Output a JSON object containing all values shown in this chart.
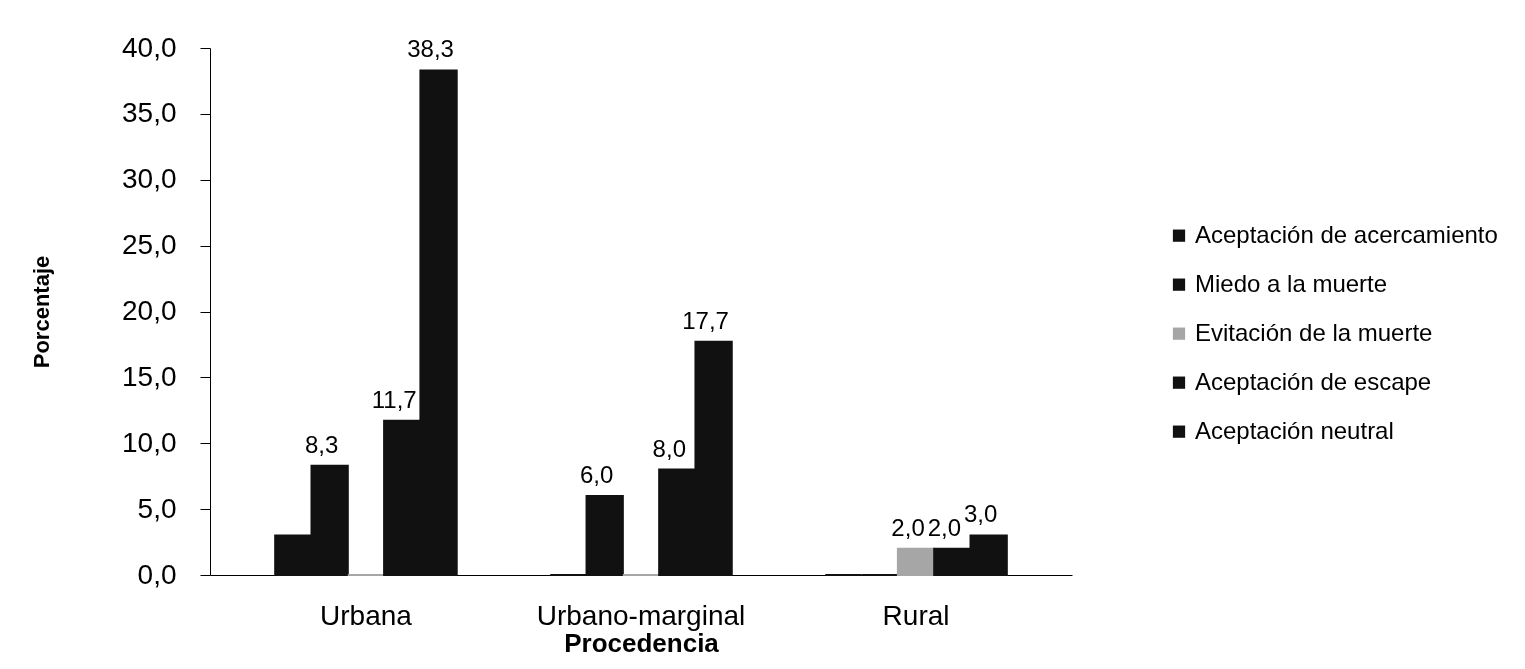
{
  "chart_data": {
    "type": "bar",
    "xlabel": "Procedencia",
    "ylabel": "Porcentaje",
    "categories": [
      "Urbana",
      "Urbano-marginal",
      "Rural"
    ],
    "series": [
      {
        "name": "Aceptación de acercamiento",
        "color": "#111111",
        "values": [
          3.0,
          0,
          0
        ]
      },
      {
        "name": "Miedo a la muerte",
        "color": "#111111",
        "values": [
          8.3,
          6.0,
          0
        ],
        "value_labels": [
          "8,3",
          "6,0",
          null
        ]
      },
      {
        "name": "Evitación de la muerte",
        "color": "#a6a6a6",
        "values": [
          0,
          0,
          2.0
        ],
        "value_labels": [
          null,
          null,
          "2,0"
        ]
      },
      {
        "name": "Aceptación de escape",
        "color": "#111111",
        "values": [
          11.7,
          8.0,
          2.0
        ],
        "value_labels": [
          "11,7",
          "8,0",
          "2,0"
        ]
      },
      {
        "name": "Aceptación neutral",
        "color": "#111111",
        "values": [
          38.3,
          17.7,
          3.0
        ],
        "value_labels": [
          "38,3",
          "17,7",
          "3,0"
        ]
      }
    ],
    "ylim": [
      0,
      40
    ],
    "yticks": [
      {
        "value": 0,
        "label": "0,0"
      },
      {
        "value": 5,
        "label": "5,0"
      },
      {
        "value": 10,
        "label": "10,0"
      },
      {
        "value": 15,
        "label": "15,0"
      },
      {
        "value": 20,
        "label": "20,0"
      },
      {
        "value": 25,
        "label": "25,0"
      },
      {
        "value": 30,
        "label": "30,0"
      },
      {
        "value": 35,
        "label": "35,0"
      },
      {
        "value": 40,
        "label": "40,0"
      }
    ],
    "grid": false,
    "legend": "right"
  }
}
